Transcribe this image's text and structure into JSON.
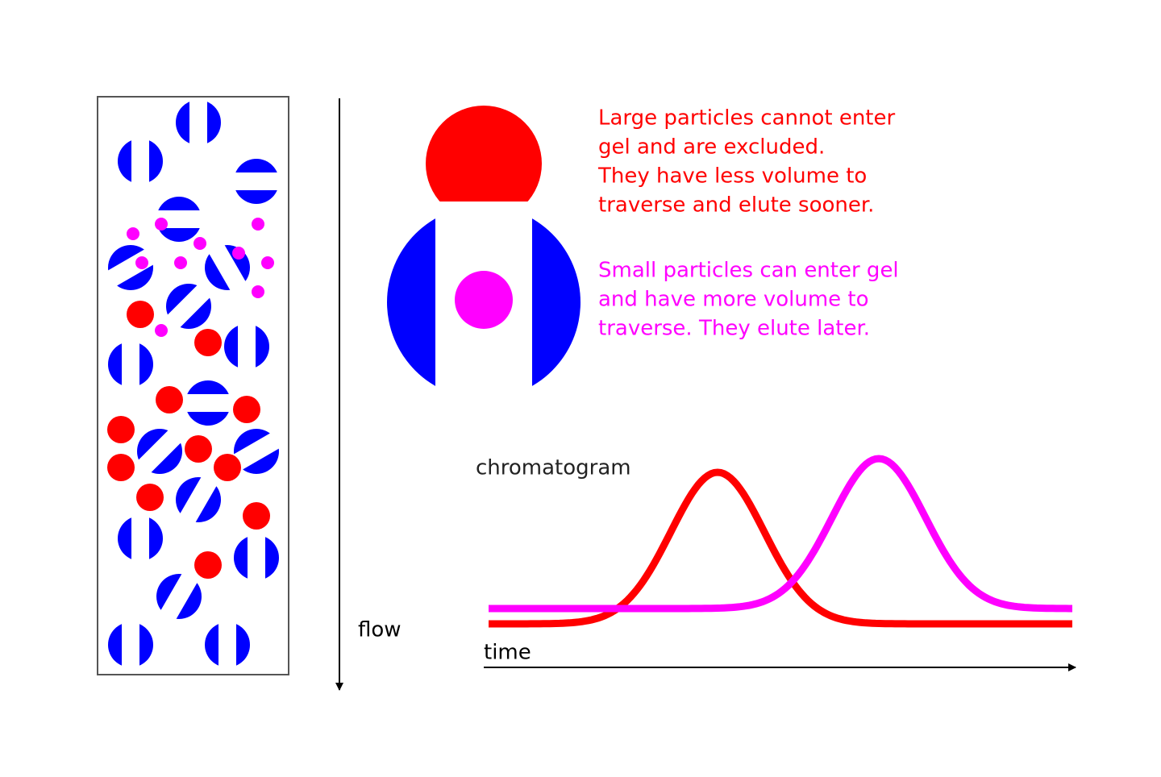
{
  "annotations": {
    "large": [
      "Large particles cannot enter",
      "gel and are excluded.",
      "They have less volume to",
      "traverse and elute sooner."
    ],
    "small": [
      "Small particles can enter gel",
      "and have more volume to",
      "traverse.  They elute later."
    ]
  },
  "labels": {
    "chromatogram": "chromatogram",
    "flow": "flow",
    "time": "time"
  }
}
